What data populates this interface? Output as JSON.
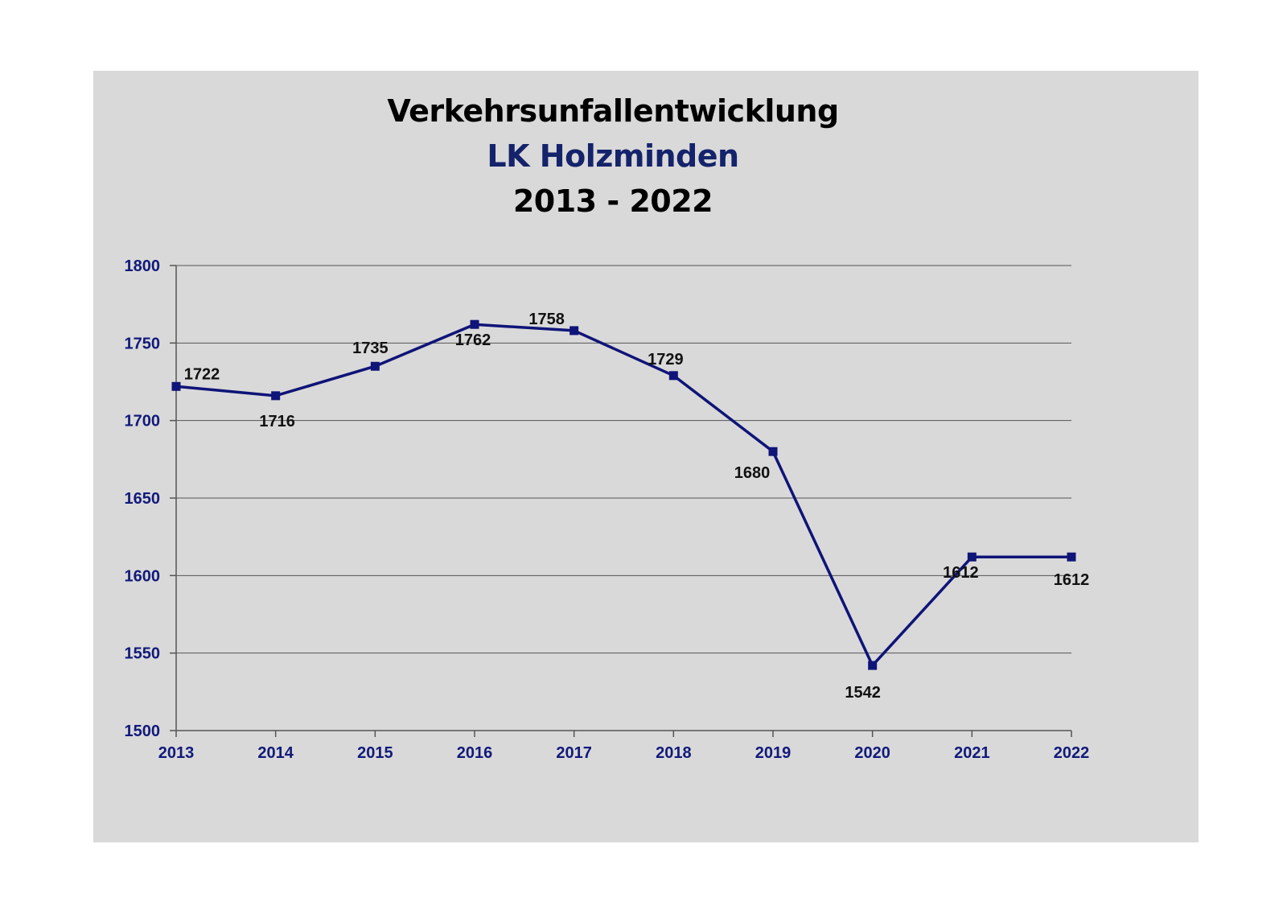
{
  "chart_data": {
    "type": "line",
    "title_lines": [
      "Verkehrsunfallentwicklung",
      "LK Holzminden",
      "2013 - 2022"
    ],
    "xlabel": "",
    "ylabel": "",
    "categories": [
      "2013",
      "2014",
      "2015",
      "2016",
      "2017",
      "2018",
      "2019",
      "2020",
      "2021",
      "2022"
    ],
    "series": [
      {
        "values": [
          1722,
          1716,
          1735,
          1762,
          1758,
          1729,
          1680,
          1542,
          1612,
          1612
        ]
      }
    ],
    "data_labels": [
      "1722",
      "1716",
      "1735",
      "1762",
      "1758",
      "1729",
      "1680",
      "1542",
      "1612",
      "1612"
    ],
    "y_ticks": [
      "1500",
      "1550",
      "1600",
      "1650",
      "1700",
      "1750",
      "1800"
    ],
    "ylim": [
      1500,
      1800
    ],
    "grid": true,
    "legend": "none",
    "colors": {
      "line": "#0f1478",
      "panel_background": "#d9d9d9",
      "title_highlight": "#14236b",
      "tick_text": "#111a7a"
    }
  }
}
